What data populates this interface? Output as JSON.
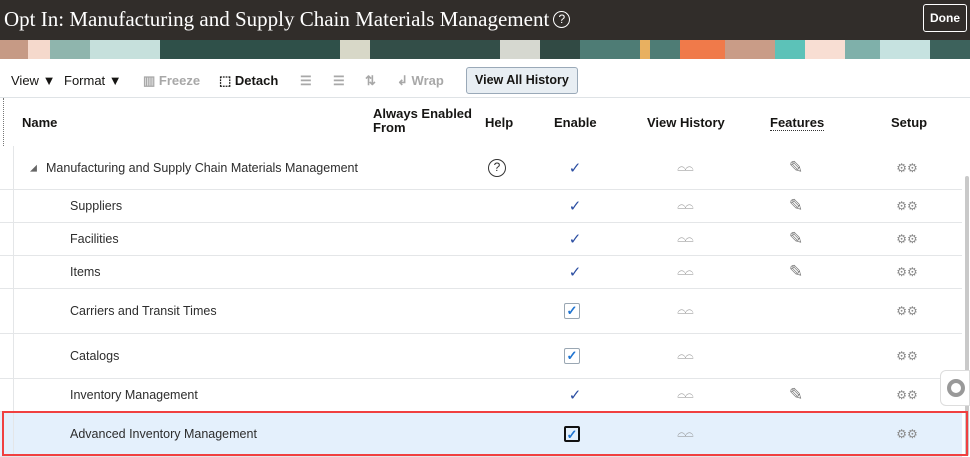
{
  "header": {
    "title": "Opt In: Manufacturing and Supply Chain Materials Management",
    "help_icon": "?",
    "done_label": "Done"
  },
  "toolbar": {
    "view": "View",
    "format": "Format",
    "freeze": "Freeze",
    "detach": "Detach",
    "wrap": "Wrap",
    "view_all_history": "View All History"
  },
  "columns": {
    "name": "Name",
    "always_enabled_line1": "Always Enabled",
    "always_enabled_line2": "From",
    "help": "Help",
    "enable": "Enable",
    "view_history": "View History",
    "features": "Features",
    "setup": "Setup"
  },
  "rows": [
    {
      "name": "Manufacturing and Supply Chain Materials Management",
      "level": 0,
      "expanded": true,
      "help": true,
      "enable": "check",
      "features": true
    },
    {
      "name": "Suppliers",
      "level": 1,
      "enable": "check",
      "features": true
    },
    {
      "name": "Facilities",
      "level": 1,
      "enable": "check",
      "features": true
    },
    {
      "name": "Items",
      "level": 1,
      "enable": "check",
      "features": true
    },
    {
      "name": "Carriers and Transit Times",
      "level": 1,
      "enable": "checkbox-checked",
      "features": false
    },
    {
      "name": "Catalogs",
      "level": 1,
      "enable": "checkbox-checked",
      "features": false
    },
    {
      "name": "Inventory Management",
      "level": 1,
      "enable": "check",
      "features": true
    },
    {
      "name": "Advanced Inventory Management",
      "level": 1,
      "enable": "checkbox-checked",
      "features": false,
      "selected": true
    }
  ],
  "colors": {
    "titlebar": "#312d2a",
    "selected_row": "#e4f0fc",
    "highlight_border": "#f04040",
    "check": "#2b4ea2"
  }
}
